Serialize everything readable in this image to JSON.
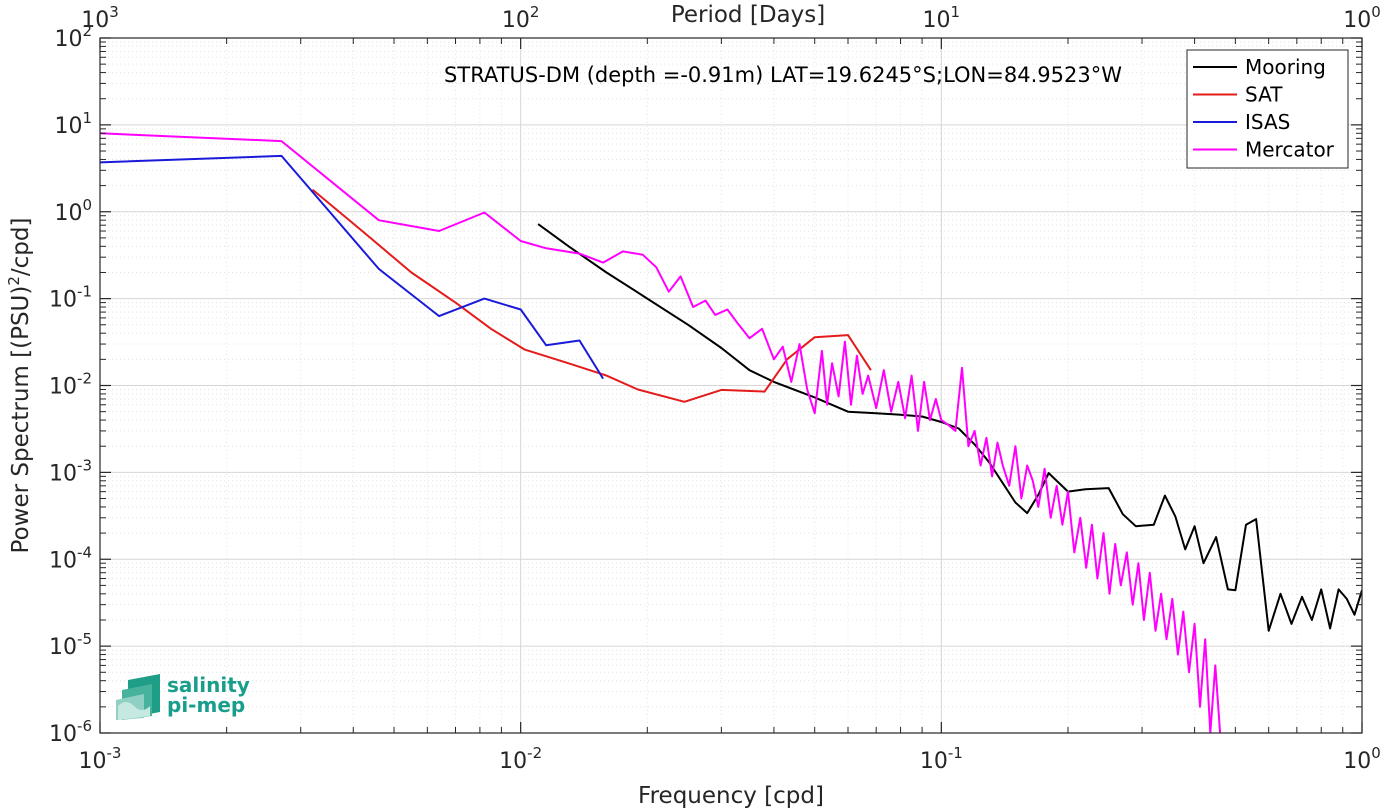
{
  "chart_data": {
    "type": "line",
    "title": "",
    "annotation": "STRATUS-DM (depth =-0.91m) LAT=19.6245°S;LON=84.9523°W",
    "xlabel": "Frequency [cpd]",
    "ylabel_main": "Power Spectrum [(PSU)",
    "ylabel_sup": "2",
    "ylabel_tail": "/cpd]",
    "top_xlabel": "Period [Days]",
    "xscale": "log",
    "yscale": "log",
    "xlim": [
      0.001,
      1
    ],
    "ylim": [
      1e-06,
      100
    ],
    "grid": true,
    "legend_position": "top-right",
    "x_ticks": [
      {
        "value": 0.001,
        "base": "10",
        "exp": "-3"
      },
      {
        "value": 0.01,
        "base": "10",
        "exp": "-2"
      },
      {
        "value": 0.1,
        "base": "10",
        "exp": "-1"
      },
      {
        "value": 1,
        "base": "10",
        "exp": "0"
      }
    ],
    "top_ticks": [
      {
        "freq": 0.001,
        "base": "10",
        "exp": "3"
      },
      {
        "freq": 0.01,
        "base": "10",
        "exp": "2"
      },
      {
        "freq": 0.1,
        "base": "10",
        "exp": "1"
      },
      {
        "freq": 1,
        "base": "10",
        "exp": "0"
      }
    ],
    "y_ticks": [
      {
        "value": 100,
        "base": "10",
        "exp": "2"
      },
      {
        "value": 10,
        "base": "10",
        "exp": "1"
      },
      {
        "value": 1,
        "base": "10",
        "exp": "0"
      },
      {
        "value": 0.1,
        "base": "10",
        "exp": "-1"
      },
      {
        "value": 0.01,
        "base": "10",
        "exp": "-2"
      },
      {
        "value": 0.001,
        "base": "10",
        "exp": "-3"
      },
      {
        "value": 0.0001,
        "base": "10",
        "exp": "-4"
      },
      {
        "value": 1e-05,
        "base": "10",
        "exp": "-5"
      },
      {
        "value": 1e-06,
        "base": "10",
        "exp": "-6"
      }
    ],
    "series": [
      {
        "name": "Mooring",
        "color": "#000000",
        "x": [
          0.011,
          0.013,
          0.016,
          0.02,
          0.025,
          0.03,
          0.035,
          0.04,
          0.05,
          0.06,
          0.07,
          0.08,
          0.09,
          0.1,
          0.11,
          0.12,
          0.13,
          0.14,
          0.15,
          0.16,
          0.17,
          0.18,
          0.2,
          0.22,
          0.25,
          0.27,
          0.29,
          0.32,
          0.34,
          0.36,
          0.38,
          0.4,
          0.42,
          0.45,
          0.48,
          0.5,
          0.53,
          0.56,
          0.6,
          0.64,
          0.68,
          0.72,
          0.76,
          0.8,
          0.84,
          0.88,
          0.92,
          0.96,
          1.0
        ],
        "y": [
          0.72,
          0.4,
          0.2,
          0.1,
          0.05,
          0.027,
          0.015,
          0.011,
          0.0073,
          0.005,
          0.0048,
          0.0046,
          0.0044,
          0.0038,
          0.0032,
          0.0021,
          0.0013,
          0.00075,
          0.00045,
          0.00034,
          0.00055,
          0.00098,
          0.0006,
          0.00064,
          0.00066,
          0.00033,
          0.00024,
          0.00025,
          0.00054,
          0.00031,
          0.00013,
          0.00024,
          9e-05,
          0.00018,
          4.5e-05,
          4.4e-05,
          0.00025,
          0.00029,
          1.5e-05,
          4e-05,
          1.8e-05,
          3.7e-05,
          2e-05,
          4.5e-05,
          1.6e-05,
          4.5e-05,
          3.5e-05,
          2.3e-05,
          4.4e-05
        ]
      },
      {
        "name": "SAT",
        "color": "#e41b1b",
        "x": [
          0.0032,
          0.0042,
          0.0055,
          0.007,
          0.0085,
          0.0102,
          0.013,
          0.016,
          0.019,
          0.0245,
          0.03,
          0.038,
          0.043,
          0.05,
          0.06,
          0.068
        ],
        "y": [
          1.8,
          0.6,
          0.2,
          0.09,
          0.045,
          0.026,
          0.018,
          0.013,
          0.009,
          0.0065,
          0.0089,
          0.0085,
          0.02,
          0.036,
          0.038,
          0.015
        ]
      },
      {
        "name": "ISAS",
        "color": "#1a1ad9",
        "x": [
          0.001,
          0.0027,
          0.0046,
          0.0064,
          0.0082,
          0.01,
          0.0115,
          0.0138,
          0.0157
        ],
        "y": [
          3.7,
          4.4,
          0.22,
          0.063,
          0.1,
          0.075,
          0.029,
          0.033,
          0.012
        ]
      },
      {
        "name": "Mercator",
        "color": "#ff00ff",
        "x": [
          0.001,
          0.0027,
          0.0046,
          0.0064,
          0.0082,
          0.01,
          0.0115,
          0.0138,
          0.0157,
          0.0175,
          0.0195,
          0.021,
          0.0225,
          0.024,
          0.0257,
          0.0275,
          0.029,
          0.031,
          0.033,
          0.035,
          0.0375,
          0.04,
          0.042,
          0.044,
          0.046,
          0.048,
          0.05,
          0.052,
          0.0535,
          0.055,
          0.057,
          0.059,
          0.061,
          0.063,
          0.065,
          0.067,
          0.07,
          0.073,
          0.076,
          0.079,
          0.082,
          0.085,
          0.088,
          0.091,
          0.094,
          0.097,
          0.1,
          0.104,
          0.108,
          0.112,
          0.116,
          0.12,
          0.124,
          0.128,
          0.132,
          0.136,
          0.14,
          0.145,
          0.15,
          0.155,
          0.16,
          0.165,
          0.17,
          0.176,
          0.182,
          0.188,
          0.194,
          0.2,
          0.207,
          0.214,
          0.221,
          0.228,
          0.235,
          0.243,
          0.251,
          0.259,
          0.267,
          0.276,
          0.285,
          0.294,
          0.303,
          0.313,
          0.323,
          0.333,
          0.343,
          0.354,
          0.365,
          0.376,
          0.388,
          0.4,
          0.412,
          0.424,
          0.436,
          0.448,
          0.46
        ],
        "y": [
          8.0,
          6.5,
          0.8,
          0.6,
          0.98,
          0.46,
          0.38,
          0.33,
          0.26,
          0.35,
          0.32,
          0.23,
          0.12,
          0.18,
          0.08,
          0.095,
          0.065,
          0.075,
          0.05,
          0.035,
          0.045,
          0.02,
          0.028,
          0.011,
          0.03,
          0.009,
          0.0048,
          0.025,
          0.006,
          0.018,
          0.0075,
          0.032,
          0.006,
          0.022,
          0.008,
          0.013,
          0.0055,
          0.015,
          0.005,
          0.011,
          0.0042,
          0.013,
          0.003,
          0.011,
          0.004,
          0.007,
          0.004,
          0.0035,
          0.003,
          0.016,
          0.002,
          0.003,
          0.0012,
          0.0025,
          0.0009,
          0.0022,
          0.0012,
          0.0007,
          0.002,
          0.0005,
          0.0012,
          0.0008,
          0.0004,
          0.0011,
          0.0003,
          0.0007,
          0.00025,
          0.0006,
          0.00012,
          0.0003,
          8e-05,
          0.00025,
          6e-05,
          0.0002,
          4e-05,
          0.00015,
          5e-05,
          0.00012,
          3e-05,
          9e-05,
          2e-05,
          7e-05,
          1.5e-05,
          4e-05,
          1.2e-05,
          3.5e-05,
          8e-06,
          2.5e-05,
          5e-06,
          1.8e-05,
          2e-06,
          1.2e-05,
          1e-06,
          6e-06,
          1e-06
        ]
      }
    ]
  },
  "logo": {
    "line1": "salinity",
    "line2": "pi-mep"
  }
}
